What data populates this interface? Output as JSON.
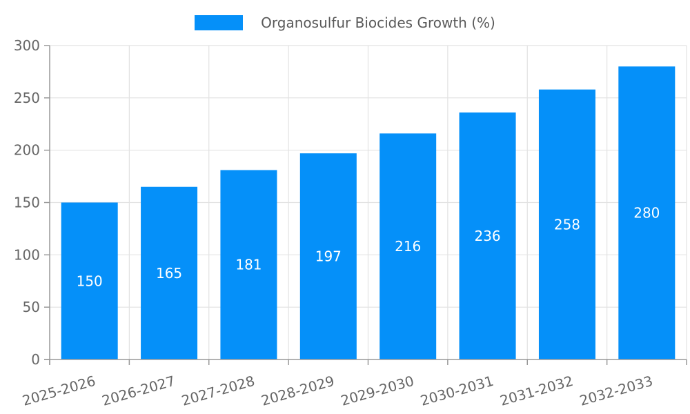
{
  "chart_data": {
    "type": "bar",
    "title": "Organosulfur Biocides Growth (%)",
    "legend_entries": [
      "Organosulfur Biocides Growth (%)"
    ],
    "legend_position": "top-center",
    "categories": [
      "2025-2026",
      "2026-2027",
      "2027-2028",
      "2028-2029",
      "2029-2030",
      "2030-2031",
      "2031-2032",
      "2032-2033"
    ],
    "values": [
      150,
      165,
      181,
      197,
      216,
      236,
      258,
      280
    ],
    "xlabel": "",
    "ylabel": "",
    "ylim": [
      0,
      300
    ],
    "yticks": [
      0,
      50,
      100,
      150,
      200,
      250,
      300
    ],
    "grid": true,
    "data_labels": true,
    "data_label_position": "center",
    "colors": {
      "bar": "#0590F9",
      "bar_label": "#ffffff",
      "grid": "#e2e2e2",
      "axis": "#999999",
      "tick_label": "#666666",
      "legend_text": "#595959",
      "background": "#ffffff"
    }
  }
}
